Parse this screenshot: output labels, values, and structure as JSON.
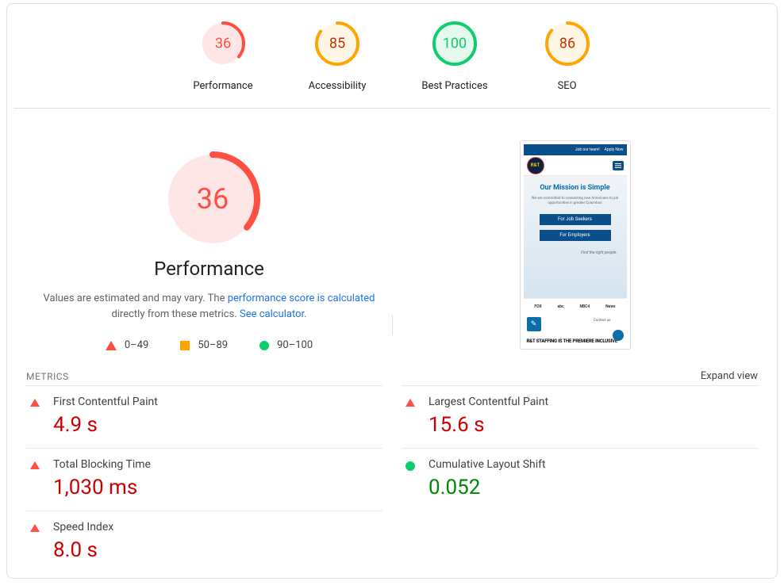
{
  "colors": {
    "fail": "#ff4e42",
    "fail_bg": "#ffe6e6",
    "warn": "#ffa400",
    "pass": "#0cce6b",
    "pass_text": "#008800",
    "link": "#1a73e8",
    "text": "#212121",
    "muted": "#5f6368",
    "border": "#e0e0e0",
    "value_red": "#cc0000"
  },
  "gauges": [
    {
      "key": "performance",
      "label": "Performance",
      "score": 36,
      "status": "fail"
    },
    {
      "key": "accessibility",
      "label": "Accessibility",
      "score": 85,
      "status": "warn"
    },
    {
      "key": "best-practices",
      "label": "Best Practices",
      "score": 100,
      "status": "pass"
    },
    {
      "key": "seo",
      "label": "SEO",
      "score": 86,
      "status": "warn"
    }
  ],
  "big_gauge": {
    "label": "Performance",
    "score": 36,
    "status": "fail"
  },
  "description": {
    "prefix": "Values are estimated and may vary. The ",
    "link1": "performance score is calculated",
    "mid": " directly from these metrics. ",
    "link2": "See calculator."
  },
  "legend": [
    {
      "shape": "triangle",
      "color": "#ff4e42",
      "label": "0–49"
    },
    {
      "shape": "square",
      "color": "#ffa400",
      "label": "50–89"
    },
    {
      "shape": "circle",
      "color": "#0cce6b",
      "label": "90–100"
    }
  ],
  "preview": {
    "topbar": {
      "left": "Job our team!",
      "right": "Apply Now"
    },
    "logo_text": "R&T",
    "hero_title": "Our Mission is Simple",
    "hero_sub": "We are committed to connecting new Americans to job opportunities in greater Columbus",
    "btn1": "For Job Seekers",
    "btn2": "For Employers",
    "tagline": "Find the right people.",
    "logos": [
      "FOX",
      "abc",
      "NBC4",
      "News"
    ],
    "contact": "Contact us",
    "headline": "R&T STAFFING IS THE PREMIERE INCLUSIVE"
  },
  "metrics_section": {
    "title": "METRICS",
    "expand": "Expand view"
  },
  "metrics": [
    {
      "name": "First Contentful Paint",
      "value": "4.9 s",
      "status": "fail",
      "col": 0
    },
    {
      "name": "Largest Contentful Paint",
      "value": "15.6 s",
      "status": "fail",
      "col": 1
    },
    {
      "name": "Total Blocking Time",
      "value": "1,030 ms",
      "status": "fail",
      "col": 0
    },
    {
      "name": "Cumulative Layout Shift",
      "value": "0.052",
      "status": "pass",
      "col": 1
    },
    {
      "name": "Speed Index",
      "value": "8.0 s",
      "status": "fail",
      "col": 0
    }
  ],
  "gauge_style": {
    "small_radius": 26,
    "small_stroke": 4,
    "big_radius": 56,
    "big_stroke": 8,
    "font_small": 18,
    "font_big": 36
  }
}
